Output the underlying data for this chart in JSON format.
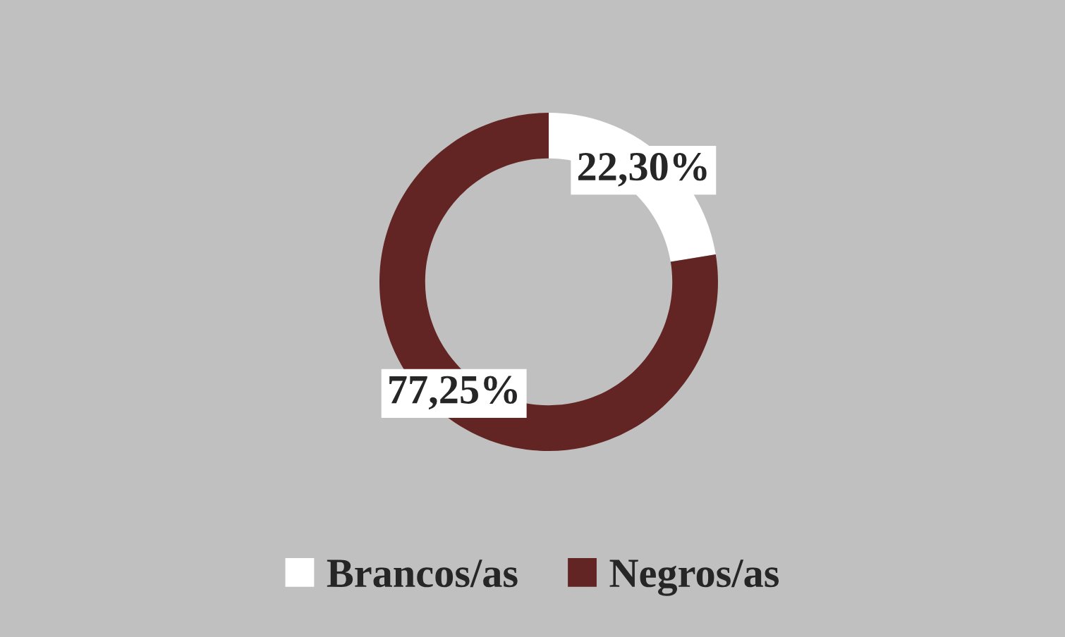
{
  "chart_data": {
    "type": "donut",
    "categories": [
      "Brancos/as",
      "Negros/as"
    ],
    "values": [
      22.3,
      77.25
    ],
    "value_labels": [
      "22,30%",
      "77,25%"
    ],
    "colors": [
      "#ffffff",
      "#632523"
    ],
    "legend": "bottom"
  }
}
